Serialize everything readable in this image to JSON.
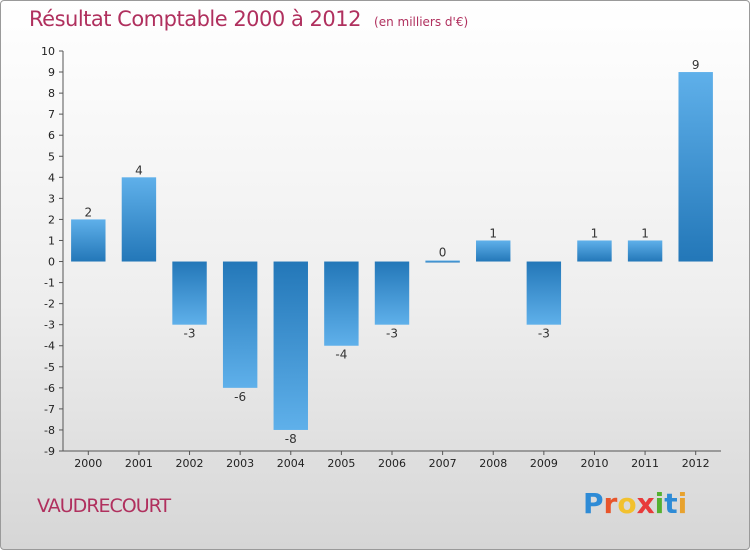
{
  "title": "Résultat Comptable 2000 à 2012",
  "subtitle": "(en milliers d'€)",
  "town": "VAUDRECOURT",
  "brand": {
    "letters": [
      "P",
      "r",
      "o",
      "x",
      "i",
      "t",
      "i"
    ],
    "colors": [
      "#2e8bd6",
      "#e8552a",
      "#f2c12e",
      "#e83a3a",
      "#55b030",
      "#2e8bd6",
      "#e8a22e"
    ]
  },
  "colors": {
    "bar_dark": "#2377b8",
    "bar_light": "#5fb0ea",
    "accent": "#b0305e"
  },
  "chart_data": {
    "type": "bar",
    "title": "Résultat Comptable 2000 à 2012",
    "ylabel": "en milliers d'€",
    "xlabel": "",
    "categories": [
      "2000",
      "2001",
      "2002",
      "2003",
      "2004",
      "2005",
      "2006",
      "2007",
      "2008",
      "2009",
      "2010",
      "2011",
      "2012"
    ],
    "values": [
      2,
      4,
      -3,
      -6,
      -8,
      -4,
      -3,
      0,
      1,
      -3,
      1,
      1,
      9
    ],
    "ylim": [
      -9,
      10
    ],
    "yticks": [
      "10",
      "9",
      "8",
      "7",
      "6",
      "5",
      "4",
      "3",
      "2",
      "1",
      "0",
      "-1",
      "-2",
      "-3",
      "-4",
      "-5",
      "-6",
      "-7",
      "-8",
      "-9"
    ],
    "ytick_values": [
      10,
      9,
      8,
      7,
      6,
      5,
      4,
      3,
      2,
      1,
      0,
      -1,
      -2,
      -3,
      -4,
      -5,
      -6,
      -7,
      -8,
      -9
    ],
    "grid": false
  }
}
